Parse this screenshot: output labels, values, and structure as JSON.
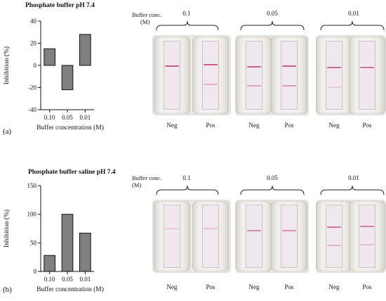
{
  "chart_data": [
    {
      "type": "bar",
      "panel": "(a)",
      "title": "Phosphate buffer pH 7.4",
      "xlabel": "Buffer concentration (M)",
      "ylabel": "Inhibition (%)",
      "categories": [
        "0.10",
        "0.05",
        "0.01"
      ],
      "values": [
        15,
        -22,
        28
      ],
      "ylim": [
        -40,
        40
      ],
      "yticks": [
        "40",
        "20",
        "0",
        "-20",
        "-40"
      ],
      "ytick_values": [
        40,
        20,
        0,
        -20,
        -40
      ],
      "bar_color": "#808080"
    },
    {
      "type": "bar",
      "panel": "(b)",
      "title": "Phosphate buffer saline pH 7.4",
      "xlabel": "Buffer concentration (M)",
      "ylabel": "Inhibition (%)",
      "categories": [
        "0.10",
        "0.05",
        "0.01"
      ],
      "values": [
        28,
        100,
        67
      ],
      "ylim": [
        0,
        150
      ],
      "yticks": [
        "150",
        "100",
        "50",
        "0"
      ],
      "ytick_values": [
        150,
        100,
        50,
        0
      ],
      "bar_color": "#808080"
    }
  ],
  "strips": {
    "buffer_label_line1": "Buffer conc.",
    "buffer_label_line2": "(M)",
    "neg_label": "Neg",
    "pos_label": "Pos",
    "band_color": "#c2547a",
    "panel_a": {
      "concentrations": [
        "0.1",
        "0.05",
        "0.01"
      ]
    },
    "panel_b": {
      "concentrations": [
        "0.1",
        "0.05",
        "0.01"
      ]
    }
  }
}
